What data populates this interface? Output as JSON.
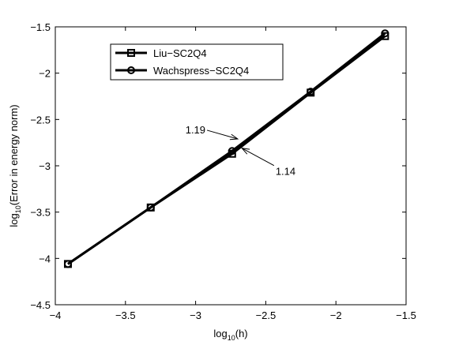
{
  "chart_data": {
    "type": "line",
    "xlabel": "log10(h)",
    "xlabel_main": "log",
    "xlabel_sub": "10",
    "xlabel_rest": "(h)",
    "ylabel": "log10(Error in energy norm)",
    "ylabel_main": "log",
    "ylabel_sub": "10",
    "ylabel_rest": "(Error in energy norm)",
    "xlim": [
      -4,
      -1.5
    ],
    "ylim": [
      -4.5,
      -1.5
    ],
    "xticks": [
      -4,
      -3.5,
      -3,
      -2.5,
      -2,
      -1.5
    ],
    "xtick_labels": [
      "−4",
      "−3.5",
      "−3",
      "−2.5",
      "−2",
      "−1.5"
    ],
    "yticks": [
      -4.5,
      -4,
      -3.5,
      -3,
      -2.5,
      -2,
      -1.5
    ],
    "ytick_labels": [
      "−4.5",
      "−4",
      "−3.5",
      "−3",
      "−2.5",
      "−2",
      "−1.5"
    ],
    "grid": false,
    "legend_position": "top-left",
    "series": [
      {
        "name": "Liu−SC2Q4",
        "marker": "square",
        "color": "#000000",
        "x": [
          -3.91,
          -3.32,
          -2.74,
          -2.18,
          -1.65
        ],
        "y": [
          -4.06,
          -3.45,
          -2.87,
          -2.21,
          -1.6
        ]
      },
      {
        "name": "Wachspress−SC2Q4",
        "marker": "circle",
        "color": "#000000",
        "x": [
          -3.91,
          -3.32,
          -2.74,
          -2.18,
          -1.65
        ],
        "y": [
          -4.06,
          -3.45,
          -2.84,
          -2.2,
          -1.57
        ]
      }
    ],
    "annotations": [
      {
        "text": "1.19",
        "text_x": -2.93,
        "text_y": -2.65,
        "arrow_x": -2.7,
        "arrow_y": -2.71
      },
      {
        "text": "1.14",
        "text_x": -2.43,
        "text_y": -3.1,
        "arrow_x": -2.67,
        "arrow_y": -2.81
      }
    ]
  }
}
